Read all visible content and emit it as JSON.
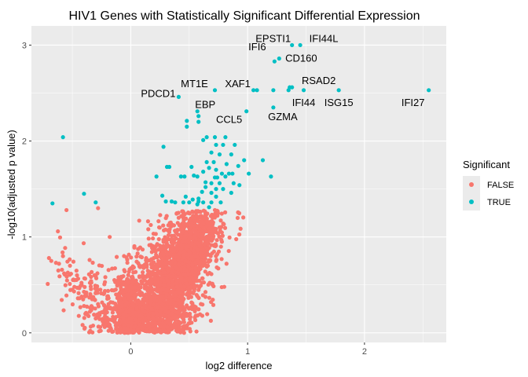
{
  "chart_data": {
    "type": "scatter",
    "title": "HIV1 Genes with Statistically Significant Differential Expression",
    "xlabel": "log2 difference",
    "ylabel": "-log10(adjusted p value)",
    "xlim": [
      -0.85,
      2.7
    ],
    "ylim": [
      -0.1,
      3.2
    ],
    "xticks": [
      0,
      1,
      2
    ],
    "yticks": [
      0,
      1,
      2,
      3
    ],
    "grid": true,
    "legend": {
      "title": "Significant",
      "position": "right",
      "entries": [
        {
          "label": "FALSE",
          "color": "#F8766D"
        },
        {
          "label": "TRUE",
          "color": "#00BFC4"
        }
      ]
    },
    "series": [
      {
        "name": "TRUE",
        "color": "#00BFC4",
        "points": [
          [
            1.45,
            3.0
          ],
          [
            1.38,
            3.0
          ],
          [
            1.27,
            2.86
          ],
          [
            1.23,
            2.83
          ],
          [
            1.36,
            2.56
          ],
          [
            1.38,
            2.56
          ],
          [
            1.05,
            2.53
          ],
          [
            1.08,
            2.53
          ],
          [
            1.22,
            2.53
          ],
          [
            1.48,
            2.53
          ],
          [
            1.35,
            2.53
          ],
          [
            1.78,
            2.53
          ],
          [
            2.55,
            2.53
          ],
          [
            0.72,
            2.53
          ],
          [
            0.41,
            2.46
          ],
          [
            1.22,
            2.35
          ],
          [
            0.99,
            2.31
          ],
          [
            0.57,
            2.31
          ],
          [
            0.58,
            2.26
          ],
          [
            0.58,
            2.2
          ],
          [
            0.48,
            2.21
          ],
          [
            0.48,
            2.15
          ],
          [
            -0.58,
            2.04
          ],
          [
            0.72,
            2.04
          ],
          [
            0.81,
            2.04
          ],
          [
            0.65,
            2.04
          ],
          [
            0.62,
            2.01
          ],
          [
            0.73,
            1.96
          ],
          [
            0.79,
            1.96
          ],
          [
            0.89,
            1.96
          ],
          [
            0.28,
            1.94
          ],
          [
            0.69,
            1.88
          ],
          [
            0.76,
            1.86
          ],
          [
            0.86,
            1.86
          ],
          [
            1.13,
            1.8
          ],
          [
            0.97,
            1.8
          ],
          [
            0.65,
            1.78
          ],
          [
            0.71,
            1.78
          ],
          [
            0.82,
            1.76
          ],
          [
            0.92,
            1.74
          ],
          [
            0.31,
            1.73
          ],
          [
            0.33,
            1.73
          ],
          [
            0.52,
            1.73
          ],
          [
            0.67,
            1.72
          ],
          [
            0.73,
            1.7
          ],
          [
            0.62,
            1.68
          ],
          [
            0.78,
            1.66
          ],
          [
            0.84,
            1.66
          ],
          [
            0.87,
            1.66
          ],
          [
            1.01,
            1.66
          ],
          [
            0.54,
            1.64
          ],
          [
            0.22,
            1.63
          ],
          [
            0.43,
            1.63
          ],
          [
            0.46,
            1.63
          ],
          [
            0.57,
            1.63
          ],
          [
            0.72,
            1.62
          ],
          [
            0.74,
            1.62
          ],
          [
            0.81,
            1.63
          ],
          [
            1.2,
            1.63
          ],
          [
            0.64,
            1.57
          ],
          [
            0.69,
            1.56
          ],
          [
            0.76,
            1.56
          ],
          [
            0.88,
            1.56
          ],
          [
            0.93,
            1.54
          ],
          [
            0.64,
            1.52
          ],
          [
            0.73,
            1.5
          ],
          [
            0.79,
            1.5
          ],
          [
            0.61,
            1.47
          ],
          [
            0.69,
            1.46
          ],
          [
            0.86,
            1.46
          ],
          [
            0.27,
            1.43
          ],
          [
            0.47,
            1.42
          ],
          [
            0.73,
            1.42
          ],
          [
            -0.4,
            1.45
          ],
          [
            0.53,
            1.39
          ],
          [
            0.58,
            1.4
          ],
          [
            0.3,
            1.37
          ],
          [
            0.35,
            1.37
          ],
          [
            0.38,
            1.36
          ],
          [
            0.45,
            1.36
          ],
          [
            0.5,
            1.36
          ],
          [
            0.58,
            1.37
          ],
          [
            0.62,
            1.36
          ],
          [
            0.69,
            1.36
          ],
          [
            0.77,
            1.36
          ],
          [
            -0.67,
            1.35
          ],
          [
            -0.3,
            1.36
          ],
          [
            0.57,
            1.34
          ],
          [
            0.67,
            1.31
          ]
        ],
        "labels": [
          {
            "text": "EPSTI1",
            "x": 1.38,
            "y": 3.0
          },
          {
            "text": "IFI44L",
            "x": 1.45,
            "y": 3.0
          },
          {
            "text": "CD160",
            "x": 1.27,
            "y": 2.86
          },
          {
            "text": "IFI6",
            "x": 1.23,
            "y": 2.83
          },
          {
            "text": "RSAD2",
            "x": 1.38,
            "y": 2.56
          },
          {
            "text": "XAF1",
            "x": 1.05,
            "y": 2.53
          },
          {
            "text": "MT1E",
            "x": 0.72,
            "y": 2.53
          },
          {
            "text": "PDCD1",
            "x": 0.41,
            "y": 2.46
          },
          {
            "text": "IFI44",
            "x": 1.48,
            "y": 2.53
          },
          {
            "text": "ISG15",
            "x": 1.78,
            "y": 2.53
          },
          {
            "text": "IFI27",
            "x": 2.55,
            "y": 2.53
          },
          {
            "text": "EBP",
            "x": 0.57,
            "y": 2.31
          },
          {
            "text": "GZMA",
            "x": 1.22,
            "y": 2.35
          },
          {
            "text": "CCL5",
            "x": 0.99,
            "y": 2.31
          }
        ]
      },
      {
        "name": "FALSE",
        "color": "#F8766D",
        "points": [
          [
            -0.7,
            0.78
          ],
          [
            -0.68,
            0.75
          ],
          [
            -0.64,
            0.73
          ],
          [
            -0.62,
            0.65
          ],
          [
            -0.58,
            0.8
          ],
          [
            -0.57,
            0.62
          ],
          [
            -0.55,
            1.28
          ],
          [
            -0.52,
            0.7
          ],
          [
            -0.5,
            0.45
          ],
          [
            -0.48,
            0.55
          ],
          [
            -0.46,
            0.6
          ],
          [
            -0.44,
            0.36
          ],
          [
            -0.42,
            0.5
          ],
          [
            -0.4,
            0.28
          ],
          [
            -0.38,
            0.42
          ],
          [
            -0.35,
            0.22
          ],
          [
            -0.33,
            0.35
          ],
          [
            -0.31,
            0.6
          ],
          [
            -0.3,
            0.15
          ],
          [
            -0.28,
            0.3
          ],
          [
            -0.26,
            0.45
          ],
          [
            -0.24,
            0.12
          ],
          [
            -0.22,
            0.2
          ],
          [
            -0.2,
            0.38
          ],
          [
            -0.18,
            0.08
          ],
          [
            -0.16,
            0.25
          ],
          [
            -0.14,
            0.55
          ],
          [
            -0.12,
            0.1
          ],
          [
            -0.1,
            0.18
          ],
          [
            -0.08,
            0.3
          ],
          [
            -0.06,
            0.05
          ],
          [
            -0.05,
            0.12
          ],
          [
            -0.04,
            0.22
          ],
          [
            -0.03,
            0.4
          ],
          [
            -0.02,
            0.08
          ],
          [
            -0.01,
            0.15
          ],
          [
            0.0,
            0.03
          ],
          [
            0.01,
            0.1
          ],
          [
            0.02,
            0.2
          ],
          [
            0.03,
            0.06
          ],
          [
            0.04,
            0.14
          ],
          [
            0.05,
            0.25
          ],
          [
            0.06,
            0.04
          ],
          [
            0.07,
            0.09
          ],
          [
            0.08,
            0.18
          ],
          [
            0.09,
            0.32
          ],
          [
            0.1,
            0.05
          ],
          [
            0.11,
            0.12
          ],
          [
            0.12,
            0.22
          ],
          [
            0.13,
            0.4
          ],
          [
            0.14,
            0.08
          ],
          [
            0.15,
            0.16
          ],
          [
            0.16,
            0.28
          ],
          [
            0.17,
            0.5
          ],
          [
            0.18,
            0.1
          ],
          [
            0.19,
            0.2
          ],
          [
            0.2,
            0.35
          ],
          [
            0.21,
            0.62
          ],
          [
            0.22,
            0.14
          ],
          [
            0.23,
            0.26
          ],
          [
            0.24,
            0.45
          ],
          [
            0.25,
            0.8
          ],
          [
            0.26,
            0.18
          ],
          [
            0.27,
            0.3
          ],
          [
            0.28,
            0.55
          ],
          [
            0.29,
            0.95
          ],
          [
            0.3,
            0.22
          ],
          [
            0.31,
            0.4
          ],
          [
            0.32,
            0.68
          ],
          [
            0.33,
            1.05
          ],
          [
            0.34,
            0.3
          ],
          [
            0.35,
            0.5
          ],
          [
            0.36,
            0.75
          ],
          [
            0.37,
            1.12
          ],
          [
            0.38,
            0.35
          ],
          [
            0.39,
            0.58
          ],
          [
            0.4,
            0.88
          ],
          [
            0.41,
            1.2
          ],
          [
            0.42,
            0.42
          ],
          [
            0.43,
            0.66
          ],
          [
            0.44,
            0.95
          ],
          [
            0.45,
            1.22
          ],
          [
            0.46,
            0.48
          ],
          [
            0.47,
            0.75
          ],
          [
            0.48,
            1.02
          ],
          [
            0.49,
            1.25
          ],
          [
            0.5,
            0.55
          ],
          [
            0.52,
            0.8
          ],
          [
            0.54,
            1.08
          ],
          [
            0.56,
            1.27
          ],
          [
            0.58,
            0.62
          ],
          [
            0.6,
            0.9
          ],
          [
            0.62,
            1.15
          ],
          [
            0.64,
            1.25
          ],
          [
            0.66,
            0.7
          ],
          [
            0.68,
            1.0
          ],
          [
            0.7,
            1.2
          ],
          [
            0.72,
            1.28
          ],
          [
            0.74,
            0.82
          ],
          [
            0.76,
            1.1
          ],
          [
            0.78,
            0.95
          ],
          [
            0.8,
            0.48
          ],
          [
            -0.28,
            1.3
          ],
          [
            -0.18,
            1.0
          ],
          [
            0.15,
            1.08
          ],
          [
            0.35,
            0.2
          ],
          [
            0.6,
            0.3
          ]
        ],
        "clusters": [
          {
            "cx": 0.35,
            "cy": 0.5,
            "sx": 0.18,
            "sy": 0.32,
            "n": 1800,
            "tilt": 1.2
          },
          {
            "cx": -0.02,
            "cy": 0.25,
            "sx": 0.05,
            "sy": 0.22,
            "n": 350,
            "tilt": 0.0
          },
          {
            "cx": -0.25,
            "cy": 0.3,
            "sx": 0.18,
            "sy": 0.2,
            "n": 220,
            "tilt": -0.9
          },
          {
            "cx": 0.55,
            "cy": 0.95,
            "sx": 0.1,
            "sy": 0.15,
            "n": 280,
            "tilt": 0.9
          }
        ]
      }
    ]
  }
}
